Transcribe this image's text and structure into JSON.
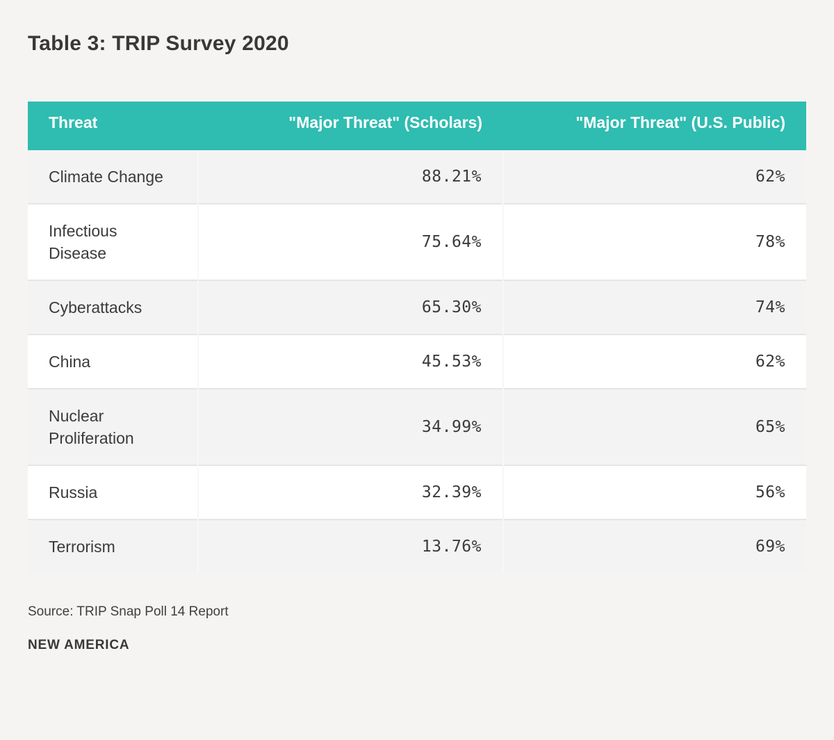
{
  "chart_data": {
    "type": "table",
    "title": "Table 3: TRIP Survey 2020",
    "columns": [
      "Threat",
      "\"Major Threat\" (Scholars)",
      "\"Major Threat\" (U.S. Public)"
    ],
    "rows": [
      [
        "Climate Change",
        "88.21%",
        "62%"
      ],
      [
        "Infectious Disease",
        "75.64%",
        "78%"
      ],
      [
        "Cyberattacks",
        "65.30%",
        "74%"
      ],
      [
        "China",
        "45.53%",
        "62%"
      ],
      [
        "Nuclear Proliferation",
        "34.99%",
        "65%"
      ],
      [
        "Russia",
        "32.39%",
        "56%"
      ],
      [
        "Terrorism",
        "13.76%",
        "69%"
      ]
    ],
    "source": "Source: TRIP Snap Poll 14 Report",
    "layout_hints": {
      "striped_rows": true,
      "header_align": [
        "left",
        "right",
        "right"
      ],
      "value_align": [
        "left",
        "right",
        "right"
      ]
    }
  },
  "colors": {
    "header_bg": "#2fbcb1",
    "header_text": "#ffffff",
    "row_stripe": "#f3f3f3",
    "page_bg": "#f5f4f2",
    "text": "#3b3b3b"
  },
  "footer": {
    "brand": "NEW AMERICA"
  }
}
